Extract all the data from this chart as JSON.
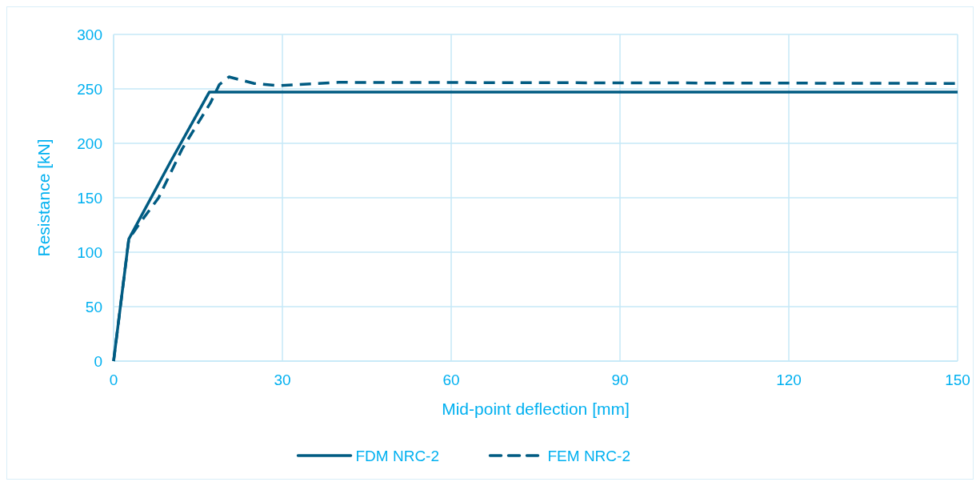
{
  "chart_data": {
    "type": "line",
    "xlabel": "Mid-point deflection [mm]",
    "ylabel": "Resistance [kN]",
    "xlim": [
      0,
      150
    ],
    "xticks": [
      0,
      30,
      60,
      90,
      120,
      150
    ],
    "ylim": [
      0,
      300
    ],
    "yticks": [
      0,
      50,
      100,
      150,
      200,
      250,
      300
    ],
    "grid": true,
    "legend": "bottom",
    "series": [
      {
        "name": "FDM NRC-2",
        "color": "#005b82",
        "line_style": "solid",
        "x": [
          0,
          2.7,
          10,
          17,
          150
        ],
        "values": [
          0,
          112,
          182,
          247,
          247
        ]
      },
      {
        "name": "FEM NRC-2",
        "color": "#005b82",
        "line_style": "dashed",
        "x": [
          0,
          2.7,
          4.7,
          8,
          12.2,
          17.2,
          18.8,
          20.5,
          25,
          29.4,
          40,
          150
        ],
        "values": [
          0,
          112,
          127,
          150,
          195,
          237,
          254,
          261,
          255,
          253,
          256,
          255
        ]
      }
    ]
  }
}
